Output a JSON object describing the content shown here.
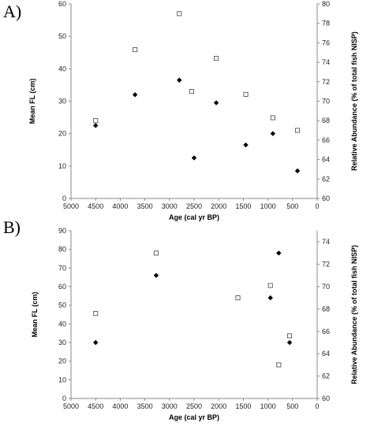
{
  "panels": {
    "a": {
      "letter": "A)"
    },
    "b": {
      "letter": "B)"
    }
  },
  "chart_data": [
    {
      "type": "scatter",
      "title": "",
      "xlabel": "Age (cal yr BP)",
      "ylabel": "Mean FL (cm)",
      "y2label": "Relative Abundance (% of total fish NISP)",
      "xlim": [
        5000,
        0
      ],
      "x_reversed": true,
      "x_ticks": [
        5000,
        4500,
        4000,
        3500,
        3000,
        2500,
        2000,
        1500,
        1000,
        500,
        0
      ],
      "ylim": [
        0,
        60
      ],
      "y_ticks": [
        0,
        10,
        20,
        30,
        40,
        50,
        60
      ],
      "y2lim": [
        60,
        80
      ],
      "y2_ticks": [
        60,
        62,
        64,
        66,
        68,
        70,
        72,
        74,
        76,
        78,
        80
      ],
      "grid": false,
      "series": [
        {
          "marker": "filled-diamond",
          "axis": "left",
          "color": "#000000",
          "x": [
            4500,
            3700,
            2800,
            2500,
            2050,
            1450,
            900,
            400
          ],
          "y": [
            22.5,
            32,
            36.5,
            12.5,
            29.5,
            16.5,
            20,
            8.5
          ]
        },
        {
          "marker": "open-square",
          "axis": "right",
          "color": "#555555",
          "x": [
            4500,
            3700,
            2800,
            2550,
            2050,
            1450,
            900,
            400
          ],
          "y": [
            68,
            75.3,
            79,
            71,
            74.4,
            70.7,
            68.3,
            67
          ]
        }
      ]
    },
    {
      "type": "scatter",
      "title": "",
      "xlabel": "Age (cal yr BP)",
      "ylabel": "Mean FL (cm)",
      "y2label": "Relative Abundance (% of total fish NISP)",
      "xlim": [
        5000,
        0
      ],
      "x_reversed": true,
      "x_ticks": [
        5000,
        4500,
        4000,
        3500,
        3000,
        2500,
        2000,
        1500,
        1000,
        500,
        0
      ],
      "ylim": [
        0,
        90
      ],
      "y_ticks": [
        0,
        10,
        20,
        30,
        40,
        50,
        60,
        70,
        80,
        90
      ],
      "y2lim": [
        60,
        75
      ],
      "y2_ticks": [
        60,
        62,
        64,
        66,
        68,
        70,
        72,
        74
      ],
      "grid": false,
      "series": [
        {
          "marker": "filled-diamond",
          "axis": "left",
          "color": "#000000",
          "x": [
            4500,
            3270,
            1610,
            950,
            780,
            560
          ],
          "y": [
            30,
            66,
            54,
            54,
            78,
            30
          ]
        },
        {
          "marker": "open-square",
          "axis": "right",
          "color": "#555555",
          "x": [
            4500,
            3270,
            1610,
            950,
            780,
            560
          ],
          "y": [
            67.6,
            73,
            69,
            70.1,
            63,
            65.6
          ]
        }
      ]
    }
  ]
}
